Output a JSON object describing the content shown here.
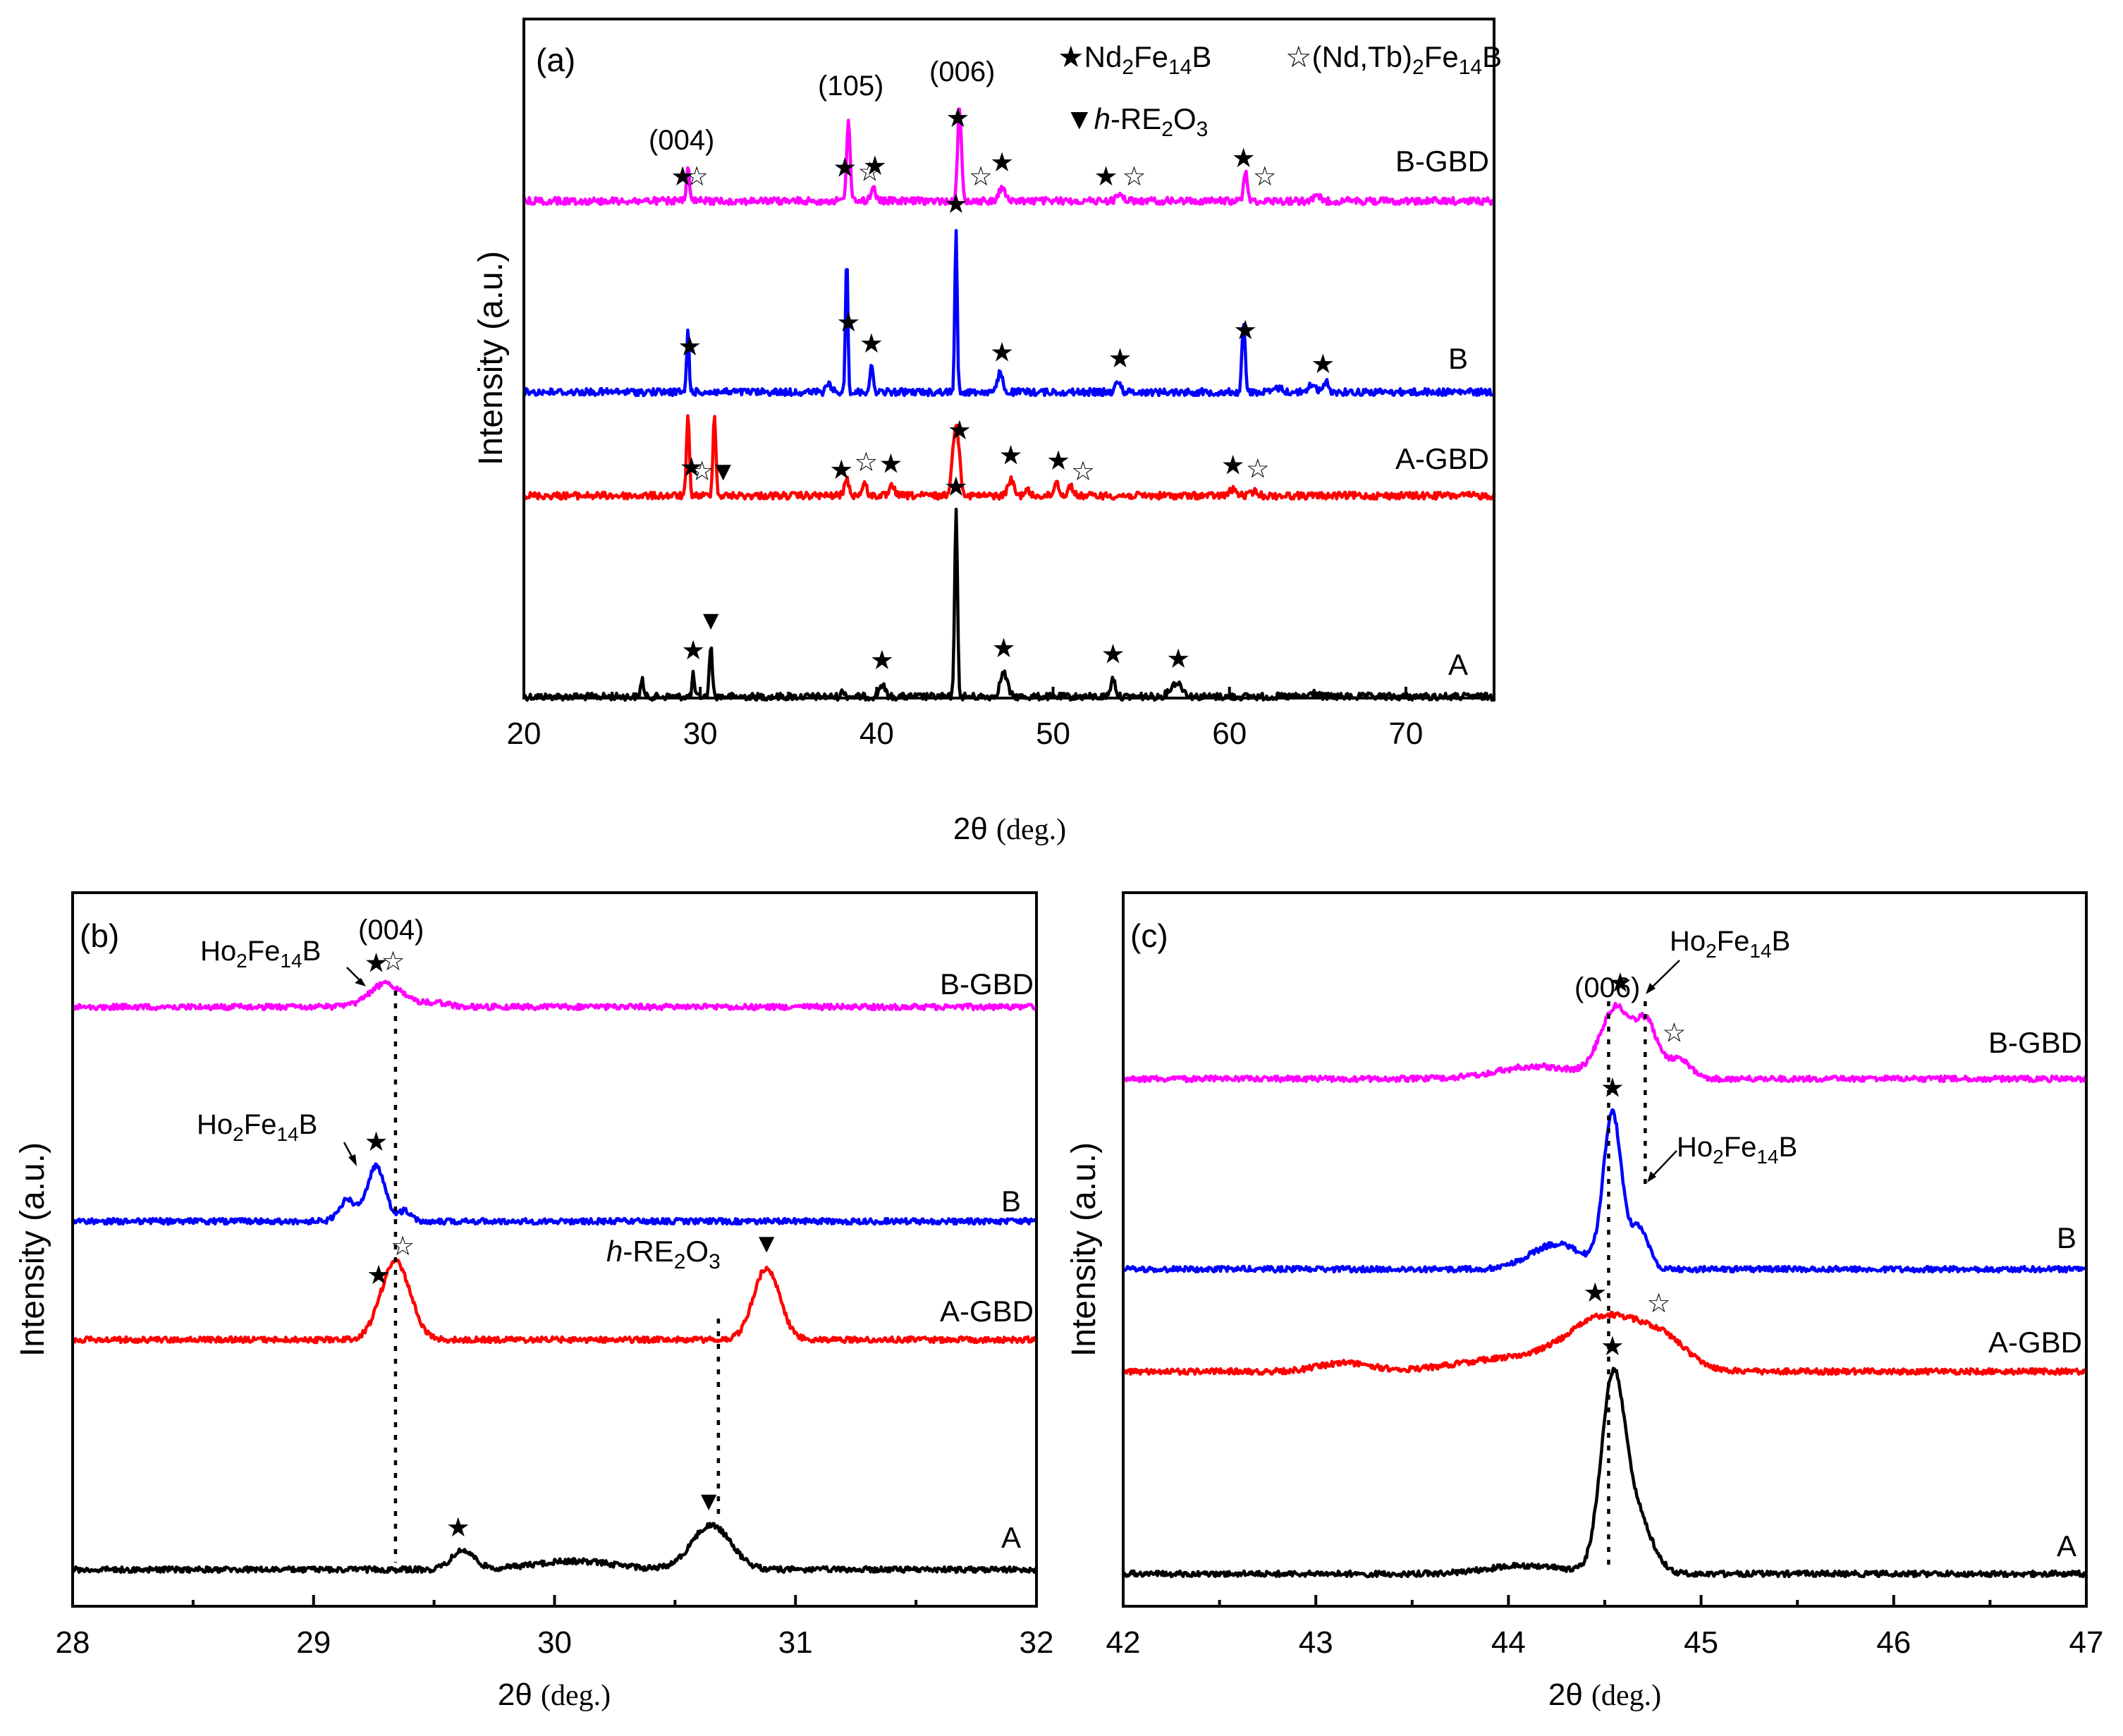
{
  "chart_data": [
    {
      "panel": "(a)",
      "type": "line",
      "xlabel": "2θ (deg.)",
      "ylabel": "Intensity (a.u.)",
      "xlim": [
        20,
        75
      ],
      "xticks": [
        20,
        30,
        40,
        50,
        60,
        70
      ],
      "xtick_labels": [
        "20",
        "30",
        "40",
        "50",
        "60",
        "70"
      ],
      "legend": [
        {
          "symbol": "★",
          "label": "Nd2Fe14B"
        },
        {
          "symbol": "☆",
          "label": "(Nd,Tb)2Fe14B"
        },
        {
          "symbol": "▼",
          "label": "h-RE2O3"
        }
      ],
      "reflections": [
        {
          "label": "(004)",
          "two_theta": 29.3
        },
        {
          "label": "(105)",
          "two_theta": 38.4
        },
        {
          "label": "(006)",
          "two_theta": 44.6
        }
      ],
      "series": [
        {
          "name": "A",
          "color": "#000000",
          "offset": 0,
          "peaks": [
            [
              26.7,
              0.09,
              0.12
            ],
            [
              29.6,
              0.11,
              0.1
            ],
            [
              30.6,
              0.26,
              0.12
            ],
            [
              38.1,
              0.03,
              0.15
            ],
            [
              40.3,
              0.06,
              0.25
            ],
            [
              44.5,
              0.93,
              0.12
            ],
            [
              47.2,
              0.12,
              0.3
            ],
            [
              53.4,
              0.09,
              0.2
            ],
            [
              57.0,
              0.07,
              0.5
            ],
            [
              64.8,
              0.02,
              0.3
            ]
          ],
          "markers": [
            [
              29.6,
              "★"
            ],
            [
              30.6,
              "▼"
            ],
            [
              40.3,
              "★"
            ],
            [
              44.5,
              "★"
            ],
            [
              47.2,
              "★"
            ],
            [
              53.4,
              "★"
            ],
            [
              57.1,
              "★"
            ]
          ]
        },
        {
          "name": "A-GBD",
          "color": "#ff0000",
          "offset": 1.0,
          "peaks": [
            [
              29.3,
              0.4,
              0.12
            ],
            [
              30.8,
              0.42,
              0.12
            ],
            [
              38.3,
              0.08,
              0.2
            ],
            [
              39.3,
              0.06,
              0.2
            ],
            [
              40.9,
              0.05,
              0.2
            ],
            [
              44.5,
              0.36,
              0.28
            ],
            [
              47.6,
              0.08,
              0.25
            ],
            [
              48.5,
              0.03,
              0.2
            ],
            [
              50.2,
              0.07,
              0.2
            ],
            [
              51.0,
              0.05,
              0.2
            ],
            [
              60.2,
              0.03,
              0.3
            ],
            [
              61.4,
              0.02,
              0.3
            ]
          ],
          "markers": [
            [
              29.5,
              "★"
            ],
            [
              30.1,
              "☆"
            ],
            [
              31.3,
              "▼"
            ],
            [
              38.0,
              "★"
            ],
            [
              39.4,
              "☆"
            ],
            [
              40.8,
              "★"
            ],
            [
              44.7,
              "★"
            ],
            [
              47.6,
              "★"
            ],
            [
              50.3,
              "★"
            ],
            [
              51.7,
              "☆"
            ],
            [
              60.2,
              "★"
            ],
            [
              61.6,
              "☆"
            ]
          ]
        },
        {
          "name": "B",
          "color": "#0000ff",
          "offset": 1.6,
          "peaks": [
            [
              29.3,
              0.32,
              0.1
            ],
            [
              37.3,
              0.04,
              0.2
            ],
            [
              38.3,
              0.68,
              0.1
            ],
            [
              39.7,
              0.12,
              0.15
            ],
            [
              44.5,
              0.82,
              0.1
            ],
            [
              47.0,
              0.1,
              0.2
            ],
            [
              53.7,
              0.06,
              0.2
            ],
            [
              60.8,
              0.36,
              0.13
            ],
            [
              62.8,
              0.02,
              0.3
            ],
            [
              64.7,
              0.04,
              0.3
            ],
            [
              65.5,
              0.05,
              0.2
            ]
          ],
          "markers": [
            [
              29.4,
              "★"
            ],
            [
              38.4,
              "★"
            ],
            [
              39.7,
              "★"
            ],
            [
              44.5,
              "★"
            ],
            [
              47.1,
              "★"
            ],
            [
              53.8,
              "★"
            ],
            [
              60.9,
              "★"
            ],
            [
              65.3,
              "★"
            ]
          ]
        },
        {
          "name": "B-GBD",
          "color": "#ff00ff",
          "offset": 2.55,
          "peaks": [
            [
              29.3,
              0.17,
              0.12
            ],
            [
              38.4,
              0.42,
              0.14
            ],
            [
              39.8,
              0.07,
              0.2
            ],
            [
              44.7,
              0.45,
              0.16
            ],
            [
              47.1,
              0.07,
              0.25
            ],
            [
              53.8,
              0.03,
              0.3
            ],
            [
              60.9,
              0.15,
              0.15
            ],
            [
              65.0,
              0.02,
              0.3
            ]
          ],
          "markers": [
            [
              29.0,
              "★"
            ],
            [
              29.8,
              "☆"
            ],
            [
              38.2,
              "★"
            ],
            [
              39.6,
              "☆"
            ],
            [
              39.9,
              "★"
            ],
            [
              44.6,
              "★"
            ],
            [
              45.9,
              "☆"
            ],
            [
              47.1,
              "★"
            ],
            [
              53.0,
              "★"
            ],
            [
              54.6,
              "☆"
            ],
            [
              60.8,
              "★"
            ],
            [
              62.0,
              "☆"
            ]
          ]
        }
      ]
    },
    {
      "panel": "(b)",
      "type": "line",
      "xlabel": "2θ (deg.)",
      "ylabel": "Intensity (a.u.)",
      "xlim": [
        28,
        32
      ],
      "xticks": [
        28,
        29,
        30,
        31,
        32
      ],
      "xtick_labels": [
        "28",
        "29",
        "30",
        "31",
        "32"
      ],
      "dotted_guides": [
        29.34,
        30.68
      ],
      "annotations": [
        {
          "text": "(004)",
          "two_theta": 29.34
        },
        {
          "text": "Ho2Fe14B",
          "series": "B-GBD"
        },
        {
          "text": "Ho2Fe14B",
          "series": "B"
        },
        {
          "text": "h-RE2O3",
          "series": "A-GBD"
        }
      ],
      "series": [
        {
          "name": "A",
          "color": "#000000",
          "offset": 0,
          "peaks": [
            [
              29.62,
              0.09,
              0.07
            ],
            [
              30.08,
              0.04,
              0.25
            ],
            [
              30.65,
              0.21,
              0.12
            ]
          ],
          "markers": [
            [
              29.6,
              "★"
            ],
            [
              30.64,
              "▼"
            ]
          ]
        },
        {
          "name": "A-GBD",
          "color": "#ff0000",
          "offset": 0.92,
          "peaks": [
            [
              29.34,
              0.37,
              0.09
            ],
            [
              30.88,
              0.34,
              0.08
            ]
          ],
          "markers": [
            [
              29.27,
              "★"
            ],
            [
              29.37,
              "☆"
            ],
            [
              30.88,
              "▼"
            ]
          ]
        },
        {
          "name": "B",
          "color": "#0000ff",
          "offset": 1.3,
          "peaks": [
            [
              29.14,
              0.1,
              0.05
            ],
            [
              29.26,
              0.26,
              0.055
            ],
            [
              29.38,
              0.05,
              0.04
            ]
          ],
          "markers": [
            [
              29.26,
              "★"
            ]
          ]
        },
        {
          "name": "B-GBD",
          "color": "#ff00ff",
          "offset": 2.0,
          "peaks": [
            [
              29.3,
              0.11,
              0.1
            ],
            [
              29.5,
              0.02,
              0.08
            ]
          ],
          "markers": [
            [
              29.26,
              "★"
            ],
            [
              29.33,
              "☆"
            ]
          ]
        }
      ]
    },
    {
      "panel": "(c)",
      "type": "line",
      "xlabel": "2θ (deg.)",
      "ylabel": "Intensity (a.u.)",
      "xlim": [
        42,
        47
      ],
      "xticks": [
        42,
        43,
        44,
        45,
        46,
        47
      ],
      "xtick_labels": [
        "42",
        "43",
        "44",
        "45",
        "46",
        "47"
      ],
      "dotted_guides": [
        44.52,
        44.71
      ],
      "annotations": [
        {
          "text": "(006)",
          "two_theta": 44.52
        },
        {
          "text": "Ho2Fe14B",
          "series": "B-GBD"
        },
        {
          "text": "Ho2Fe14B",
          "series": "B"
        }
      ],
      "series": [
        {
          "name": "A",
          "color": "#000000",
          "offset": 0,
          "peaks": [
            [
              44.54,
              0.44,
              0.09
            ],
            [
              44.66,
              0.14,
              0.12
            ],
            [
              44.1,
              0.02,
              0.3
            ]
          ],
          "markers": [
            [
              44.54,
              "★"
            ]
          ]
        },
        {
          "name": "A-GBD",
          "color": "#ff0000",
          "offset": 0.39,
          "peaks": [
            [
              43.15,
              0.02,
              0.2
            ],
            [
              44.52,
              0.13,
              0.3
            ],
            [
              44.82,
              0.05,
              0.18
            ],
            [
              44.0,
              0.03,
              0.4
            ]
          ],
          "markers": [
            [
              44.45,
              "★"
            ],
            [
              44.78,
              "☆"
            ]
          ]
        },
        {
          "name": "B",
          "color": "#0000ff",
          "offset": 0.55,
          "peaks": [
            [
              44.54,
              0.37,
              0.07
            ],
            [
              44.68,
              0.1,
              0.07
            ],
            [
              44.25,
              0.06,
              0.2
            ]
          ],
          "markers": [
            [
              44.54,
              "★"
            ]
          ]
        },
        {
          "name": "B-GBD",
          "color": "#ff00ff",
          "offset": 0.95,
          "peaks": [
            [
              44.56,
              0.17,
              0.12
            ],
            [
              44.72,
              0.12,
              0.08
            ],
            [
              44.88,
              0.05,
              0.09
            ],
            [
              44.15,
              0.03,
              0.3
            ]
          ],
          "markers": [
            [
              44.58,
              "★"
            ],
            [
              44.86,
              "☆"
            ]
          ]
        }
      ]
    }
  ]
}
